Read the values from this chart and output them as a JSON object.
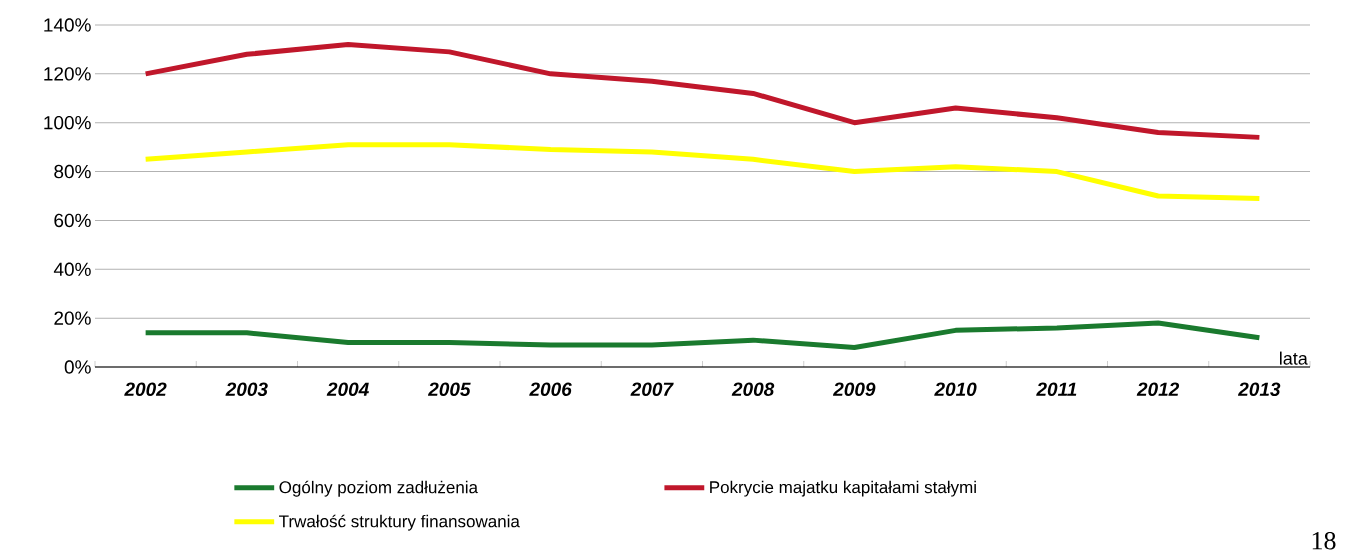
{
  "chart_data": {
    "type": "line",
    "xlabel": "lata",
    "categories": [
      "2002",
      "2003",
      "2004",
      "2005",
      "2006",
      "2007",
      "2008",
      "2009",
      "2010",
      "2011",
      "2012",
      "2013"
    ],
    "series": [
      {
        "name": "Ogólny poziom zadłużenia",
        "color": "#1a7a2e",
        "values": [
          14,
          14,
          10,
          10,
          9,
          9,
          11,
          8,
          15,
          16,
          18,
          12
        ]
      },
      {
        "name": "Pokrycie majatku kapitałami stałymi",
        "color": "#c0172b",
        "values": [
          120,
          128,
          132,
          129,
          120,
          117,
          112,
          100,
          106,
          102,
          96,
          94
        ]
      },
      {
        "name": "Trwałość struktury finansowania",
        "color": "#ffff00",
        "values": [
          85,
          88,
          91,
          91,
          89,
          88,
          85,
          80,
          82,
          80,
          70,
          69
        ]
      }
    ],
    "ylim": [
      0,
      140
    ],
    "yticks": [
      {
        "value": 0,
        "label": "0%"
      },
      {
        "value": 20,
        "label": "20%"
      },
      {
        "value": 40,
        "label": "40%"
      },
      {
        "value": 60,
        "label": "60%"
      },
      {
        "value": 80,
        "label": "80%"
      },
      {
        "value": 100,
        "label": "100%"
      },
      {
        "value": 120,
        "label": "120%"
      },
      {
        "value": 140,
        "label": "140%"
      }
    ],
    "grid": "y",
    "legend": "bottom",
    "marker": "none",
    "line_style": "solid",
    "annotations": [
      "18"
    ]
  }
}
